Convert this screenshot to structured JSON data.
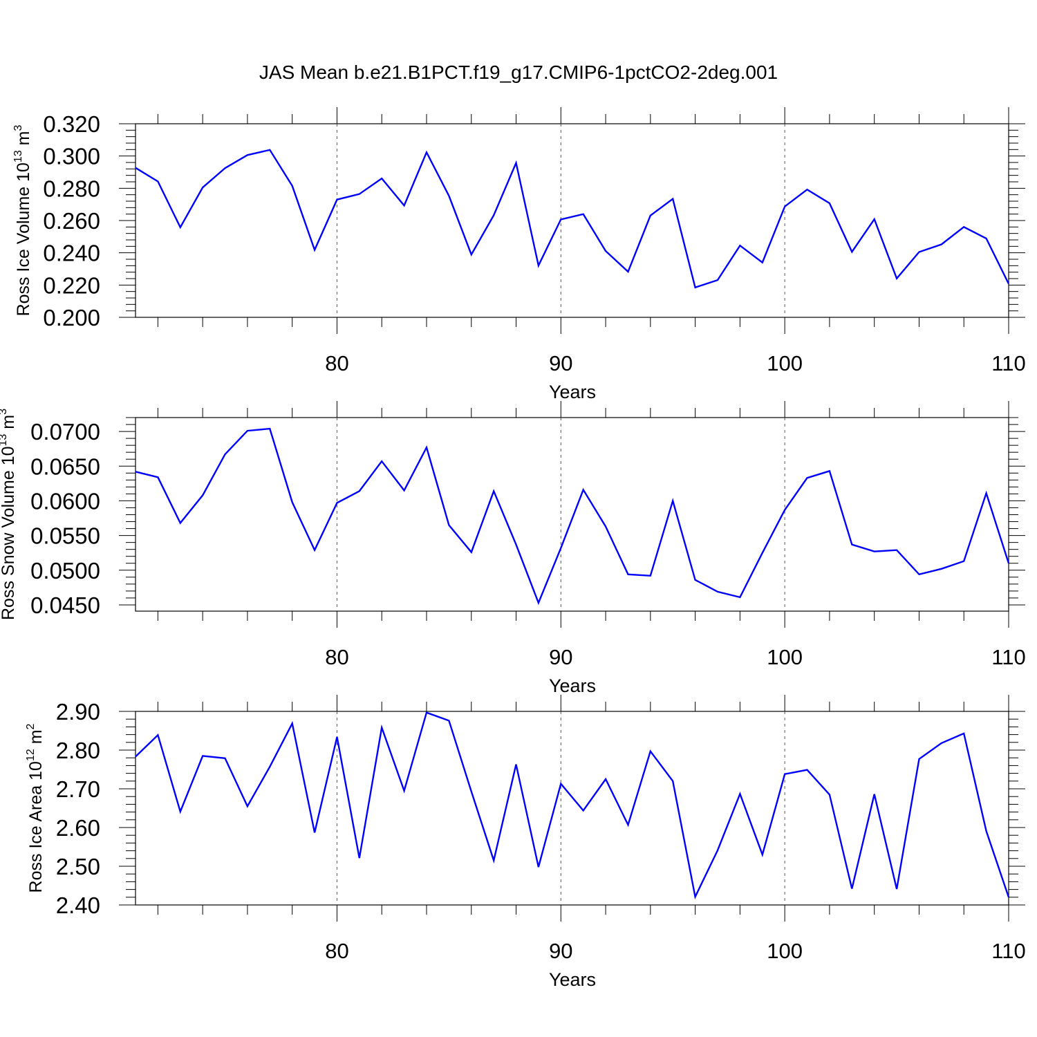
{
  "chart_data": {
    "title": "JAS Mean b.e21.B1PCT.f19_g17.CMIP6-1pctCO2-2deg.001",
    "series_color": "#0000ff",
    "x": [
      71,
      72,
      73,
      74,
      75,
      76,
      77,
      78,
      79,
      80,
      81,
      82,
      83,
      84,
      85,
      86,
      87,
      88,
      89,
      90,
      91,
      92,
      93,
      94,
      95,
      96,
      97,
      98,
      99,
      100,
      101,
      102,
      103,
      104,
      105,
      106,
      107,
      108,
      109,
      110
    ],
    "xlim": [
      71,
      110
    ],
    "xticks": [
      80,
      90,
      100,
      110
    ],
    "panels": [
      {
        "type": "line",
        "ylabel": {
          "text": "Ross Ice Volume 10",
          "exp": "13",
          "unit": " m",
          "unit_exp": "3"
        },
        "xlabel": "Years",
        "ylim": [
          0.2,
          0.32
        ],
        "yticks": [
          0.2,
          0.22,
          0.24,
          0.26,
          0.28,
          0.3,
          0.32
        ],
        "ytick_labels": [
          "0.200",
          "0.220",
          "0.240",
          "0.260",
          "0.280",
          "0.300",
          "0.320"
        ],
        "grid": "dashed vertical",
        "values": [
          0.2927,
          0.2842,
          0.2558,
          0.2805,
          0.2925,
          0.3006,
          0.3038,
          0.2815,
          0.2418,
          0.273,
          0.2764,
          0.2861,
          0.2693,
          0.3023,
          0.2753,
          0.2389,
          0.2633,
          0.2957,
          0.2321,
          0.2607,
          0.264,
          0.2411,
          0.2283,
          0.2631,
          0.2734,
          0.2185,
          0.2231,
          0.2445,
          0.234,
          0.2687,
          0.2792,
          0.2707,
          0.2406,
          0.2608,
          0.2241,
          0.2405,
          0.2452,
          0.256,
          0.2489,
          0.2208
        ]
      },
      {
        "type": "line",
        "ylabel": {
          "text": "Ross Snow Volume 10",
          "exp": "13",
          "unit": " m",
          "unit_exp": "3"
        },
        "xlabel": "Years",
        "ylim": [
          0.0441,
          0.072
        ],
        "yticks": [
          0.045,
          0.05,
          0.055,
          0.06,
          0.065,
          0.07
        ],
        "ytick_labels": [
          "0.0450",
          "0.0500",
          "0.0550",
          "0.0600",
          "0.0650",
          "0.0700"
        ],
        "grid": "dashed vertical",
        "values": [
          0.0642,
          0.0634,
          0.0568,
          0.0608,
          0.0667,
          0.0701,
          0.0704,
          0.0598,
          0.0529,
          0.0597,
          0.0614,
          0.0657,
          0.0615,
          0.0677,
          0.0565,
          0.0526,
          0.0614,
          0.0537,
          0.0453,
          0.0532,
          0.0616,
          0.0563,
          0.0494,
          0.0492,
          0.06,
          0.0486,
          0.0469,
          0.0461,
          0.0525,
          0.0587,
          0.0633,
          0.0643,
          0.0537,
          0.0527,
          0.0529,
          0.0494,
          0.0502,
          0.0513,
          0.0611,
          0.051
        ]
      },
      {
        "type": "line",
        "ylabel": {
          "text": "Ross Ice Area 10",
          "exp": "12",
          "unit": " m",
          "unit_exp": "2"
        },
        "xlabel": "Years",
        "ylim": [
          2.4,
          2.9
        ],
        "yticks": [
          2.4,
          2.5,
          2.6,
          2.7,
          2.8,
          2.9
        ],
        "ytick_labels": [
          "2.40",
          "2.50",
          "2.60",
          "2.70",
          "2.80",
          "2.90"
        ],
        "grid": "dashed vertical",
        "values": [
          2.783,
          2.839,
          2.641,
          2.785,
          2.779,
          2.655,
          2.757,
          2.869,
          2.587,
          2.834,
          2.521,
          2.858,
          2.695,
          2.897,
          2.876,
          2.693,
          2.515,
          2.763,
          2.498,
          2.713,
          2.644,
          2.725,
          2.607,
          2.797,
          2.72,
          2.421,
          2.541,
          2.687,
          2.53,
          2.738,
          2.749,
          2.685,
          2.442,
          2.686,
          2.441,
          2.777,
          2.818,
          2.843,
          2.591,
          2.42
        ]
      }
    ]
  }
}
